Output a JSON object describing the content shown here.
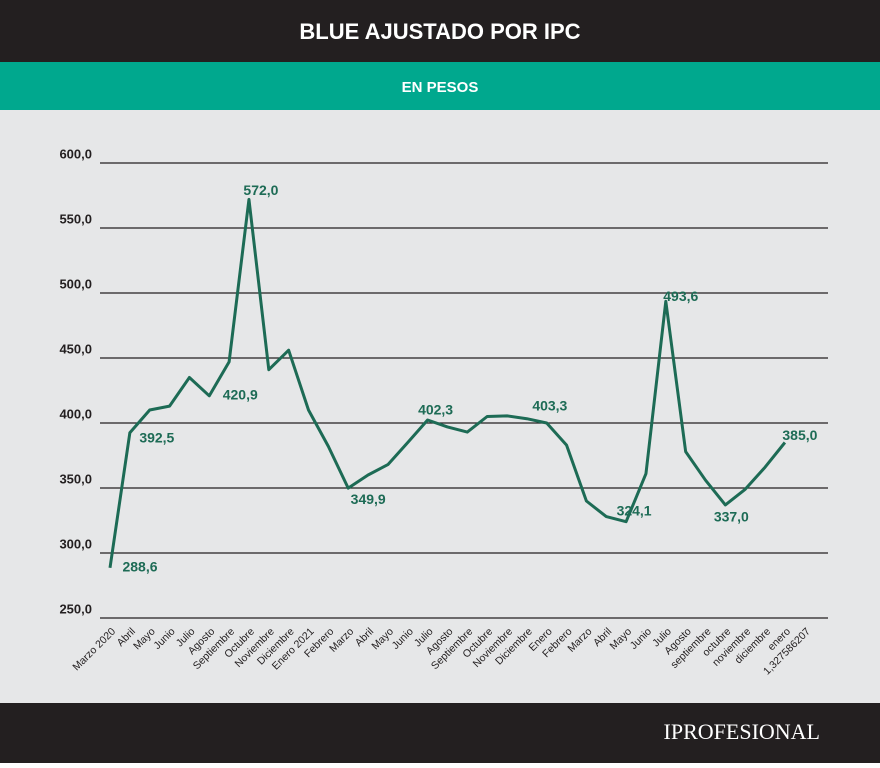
{
  "header": {
    "title": "BLUE AJUSTADO POR IPC",
    "subtitle": "EN PESOS"
  },
  "chart_data": {
    "type": "line",
    "categories": [
      "Marzo 2020",
      "Abril",
      "Mayo",
      "Junio",
      "Julio",
      "Agosto",
      "Septiembre",
      "Octubre",
      "Noviembre",
      "Diciembre",
      "Enero 2021",
      "Febrero",
      "Marzo",
      "Abril",
      "Mayo",
      "Junio",
      "Julio",
      "Agosto",
      "Septiembre",
      "Octubre",
      "Noviembre",
      "Diciembre",
      "Enero",
      "Febrero",
      "Marzo",
      "Abril",
      "Mayo",
      "Junio",
      "Julio",
      "Agosto",
      "septiembre",
      "octubre",
      "noviembre",
      "diciembre",
      "enero",
      "1,327586207"
    ],
    "series": [
      {
        "color": "#1d6b55",
        "values": [
          288.6,
          392.5,
          410,
          413,
          435,
          420.9,
          447,
          572.0,
          441,
          456,
          410,
          382,
          349.9,
          360,
          368,
          385,
          402.3,
          397,
          393,
          405,
          405.5,
          403.3,
          400,
          383,
          340,
          328,
          324.1,
          361,
          493.6,
          378,
          356,
          337.0,
          349,
          366,
          385.0,
          null
        ],
        "value_labels": [
          "288,6",
          "392,5",
          null,
          null,
          null,
          "420,9",
          null,
          "572,0",
          null,
          null,
          null,
          null,
          "349,9",
          null,
          null,
          null,
          "402,3",
          null,
          null,
          null,
          null,
          "403,3",
          null,
          null,
          null,
          null,
          "324,1",
          null,
          "493,6",
          null,
          null,
          "337,0",
          null,
          null,
          "385,0",
          null
        ]
      }
    ],
    "ylim": [
      250,
      600
    ],
    "yticks": [
      {
        "value": 250,
        "label": "250,0"
      },
      {
        "value": 300,
        "label": "300,0"
      },
      {
        "value": 350,
        "label": "350,0"
      },
      {
        "value": 400,
        "label": "400,0"
      },
      {
        "value": 450,
        "label": "450,0"
      },
      {
        "value": 500,
        "label": "500,0"
      },
      {
        "value": 550,
        "label": "550,0"
      },
      {
        "value": 600,
        "label": "600,0"
      }
    ],
    "grid": true
  },
  "footer": {
    "logo": "IPROFESIONAL"
  }
}
